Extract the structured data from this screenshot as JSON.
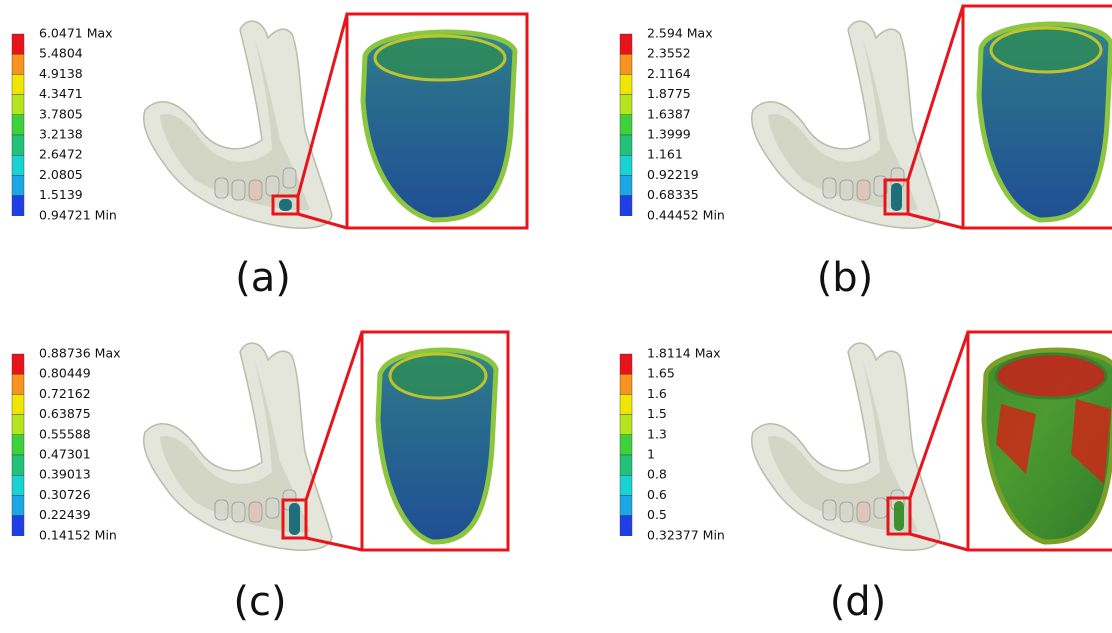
{
  "panels": [
    {
      "label": "(a)",
      "legend": [
        "6.0471 Max",
        "5.4804",
        "4.9138",
        "4.3471",
        "3.7805",
        "3.2138",
        "2.6472",
        "2.0805",
        "1.5139",
        "0.94721 Min"
      ]
    },
    {
      "label": "(b)",
      "legend": [
        "2.594 Max",
        "2.3552",
        "2.1164",
        "1.8775",
        "1.6387",
        "1.3999",
        "1.161",
        "0.92219",
        "0.68335",
        "0.44452 Min"
      ]
    },
    {
      "label": "(c)",
      "legend": [
        "0.88736 Max",
        "0.80449",
        "0.72162",
        "0.63875",
        "0.55588",
        "0.47301",
        "0.39013",
        "0.30726",
        "0.22439",
        "0.14152 Min"
      ]
    },
    {
      "label": "(d)",
      "legend": [
        "1.8114 Max",
        "1.65",
        "1.6",
        "1.5",
        "1.3",
        "1",
        "0.8",
        "0.6",
        "0.5",
        "0.32377 Min"
      ]
    }
  ]
}
